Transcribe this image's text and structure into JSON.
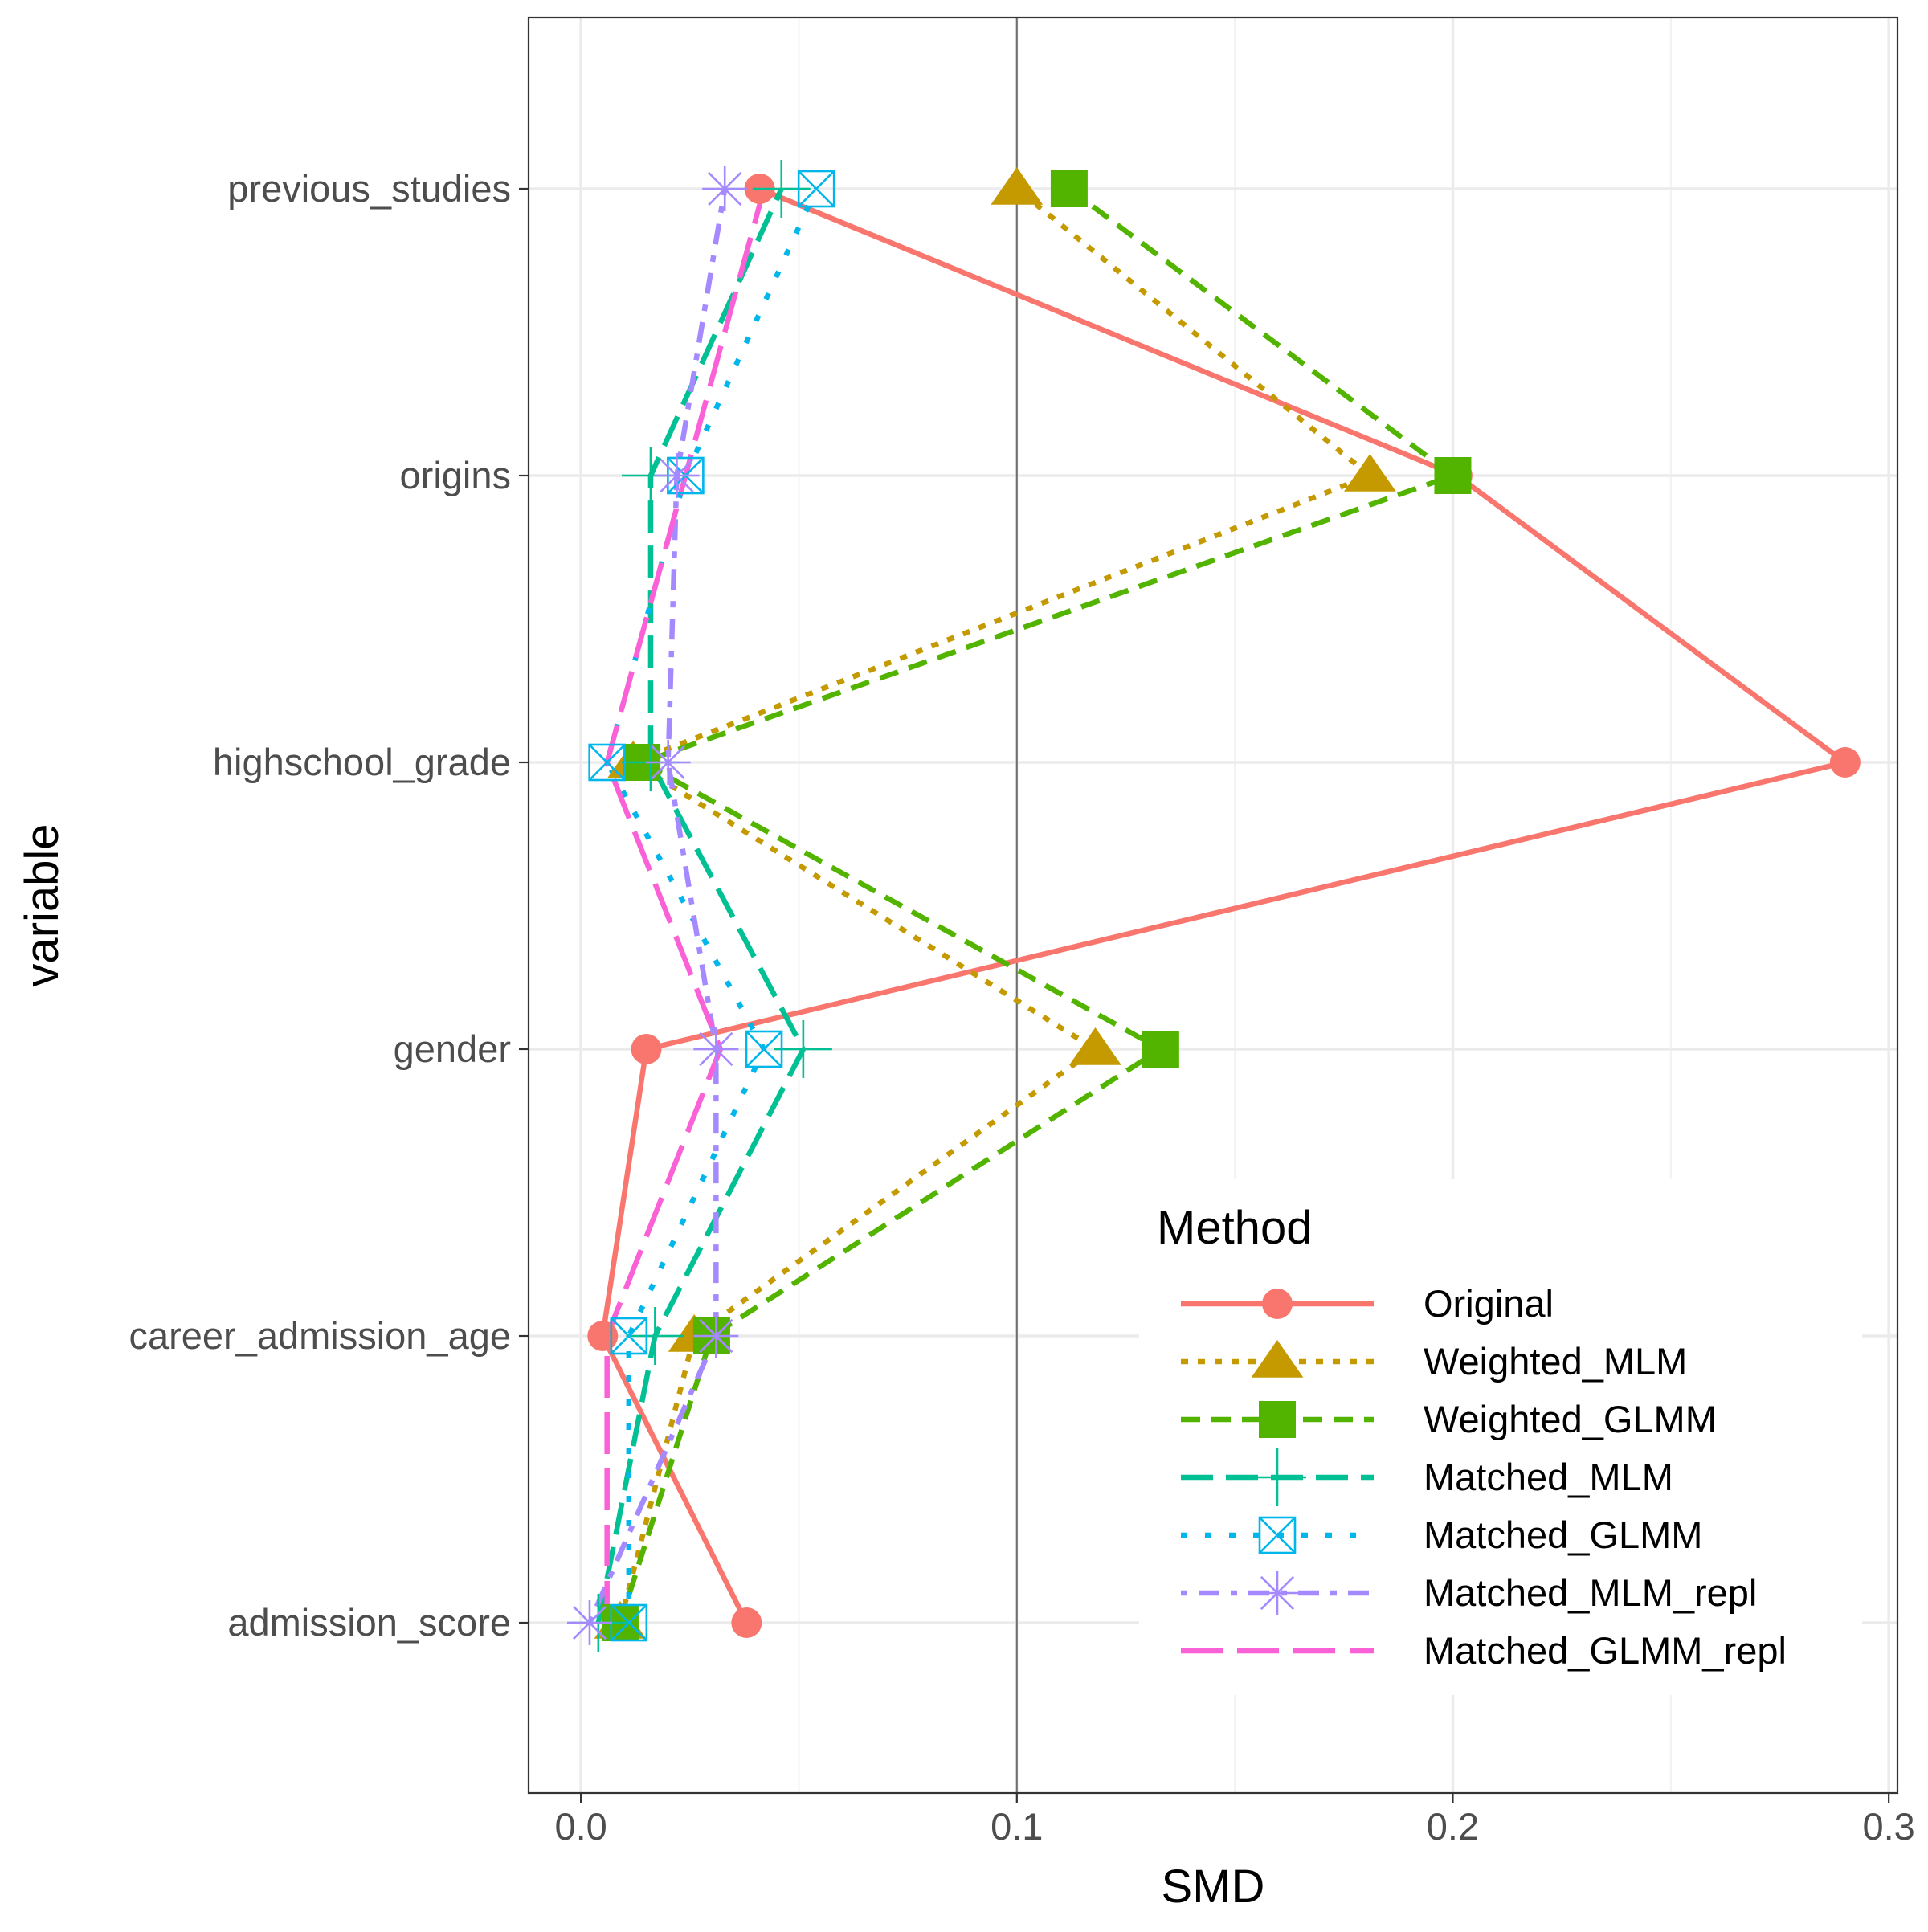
{
  "chart_data": {
    "type": "line",
    "xlabel": "SMD",
    "ylabel": "variable",
    "xlim": [
      -0.012,
      0.302
    ],
    "x_ticks": [
      0.0,
      0.1,
      0.2,
      0.3
    ],
    "x_tick_labels": [
      "0.0",
      "0.1",
      "0.2",
      "0.3"
    ],
    "reference_line_x": 0.1,
    "categories": [
      "admission_score",
      "career_admission_age",
      "gender",
      "highschool_grade",
      "origins",
      "previous_studies"
    ],
    "grid": true,
    "legend_position": "bottom-right",
    "legend_title": "Method",
    "series": [
      {
        "name": "Original",
        "color": "#F8766D",
        "marker": "circle",
        "linetype": "solid",
        "values": [
          0.038,
          0.005,
          0.015,
          0.29,
          0.201,
          0.041
        ]
      },
      {
        "name": "Weighted_MLM",
        "color": "#C49A00",
        "marker": "triangle",
        "linetype": "dotted",
        "values": [
          0.009,
          0.026,
          0.118,
          0.012,
          0.181,
          0.1
        ]
      },
      {
        "name": "Weighted_GLMM",
        "color": "#53B400",
        "marker": "square",
        "linetype": "dashed",
        "values": [
          0.009,
          0.03,
          0.133,
          0.014,
          0.2,
          0.112
        ]
      },
      {
        "name": "Matched_MLM",
        "color": "#00C094",
        "marker": "plus",
        "linetype": "longdash",
        "values": [
          0.004,
          0.017,
          0.051,
          0.016,
          0.016,
          0.046
        ]
      },
      {
        "name": "Matched_GLMM",
        "color": "#00B6EB",
        "marker": "square-x",
        "linetype": "dotted-sparse",
        "values": [
          0.011,
          0.011,
          0.042,
          0.006,
          0.024,
          0.054
        ]
      },
      {
        "name": "Matched_MLM_repl",
        "color": "#A58AFF",
        "marker": "asterisk",
        "linetype": "dotdash",
        "values": [
          0.002,
          0.031,
          0.031,
          0.02,
          0.022,
          0.033
        ]
      },
      {
        "name": "Matched_GLMM_repl",
        "color": "#FB61D7",
        "marker": "none",
        "linetype": "twodash",
        "values": [
          0.006,
          0.006,
          0.032,
          0.006,
          0.024,
          0.042
        ]
      }
    ]
  }
}
